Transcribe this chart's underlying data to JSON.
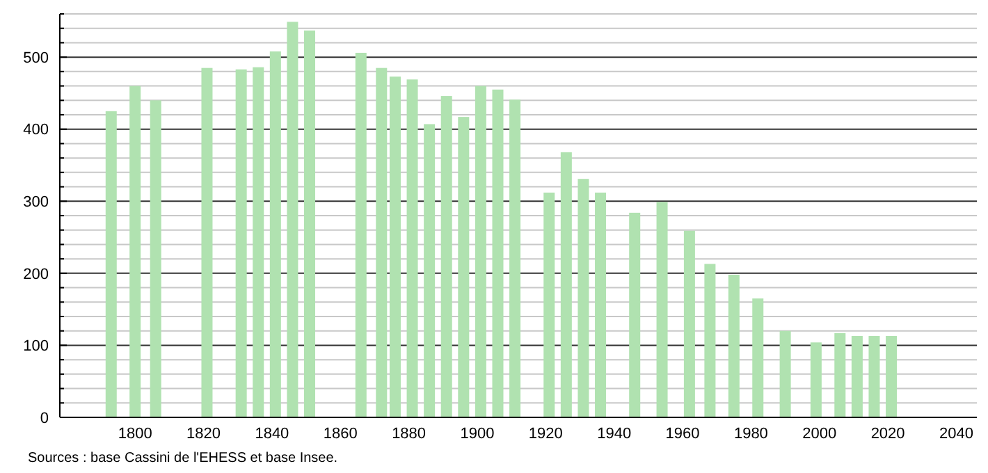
{
  "chart_data": {
    "type": "bar",
    "x": [
      1793,
      1800,
      1806,
      1821,
      1831,
      1836,
      1841,
      1846,
      1851,
      1866,
      1872,
      1876,
      1881,
      1886,
      1891,
      1896,
      1901,
      1906,
      1911,
      1921,
      1926,
      1931,
      1936,
      1946,
      1954,
      1962,
      1968,
      1975,
      1982,
      1990,
      1999,
      2006,
      2011,
      2016,
      2021
    ],
    "values": [
      425,
      460,
      440,
      485,
      483,
      486,
      508,
      549,
      537,
      506,
      485,
      473,
      469,
      407,
      446,
      417,
      460,
      455,
      441,
      312,
      368,
      331,
      312,
      284,
      299,
      259,
      213,
      198,
      165,
      120,
      104,
      117,
      113,
      113,
      113
    ],
    "color": "#b0e2b0",
    "xlim": [
      1778,
      2046
    ],
    "xticks": [
      1800,
      1820,
      1840,
      1860,
      1880,
      1900,
      1920,
      1940,
      1960,
      1980,
      2000,
      2020,
      2040
    ],
    "ylim": [
      0,
      560
    ],
    "yticks": [
      0,
      {
        "value": 20,
        "label": null
      },
      {
        "value": 40,
        "label": null
      },
      {
        "value": 60,
        "label": null
      },
      {
        "value": 80,
        "label": null
      },
      100,
      {
        "value": 120,
        "label": null
      },
      {
        "value": 140,
        "label": null
      },
      {
        "value": 160,
        "label": null
      },
      {
        "value": 180,
        "label": null
      },
      200,
      {
        "value": 220,
        "label": null
      },
      {
        "value": 240,
        "label": null
      },
      {
        "value": 260,
        "label": null
      },
      {
        "value": 280,
        "label": null
      },
      300,
      {
        "value": 320,
        "label": null
      },
      {
        "value": 340,
        "label": null
      },
      {
        "value": 360,
        "label": null
      },
      {
        "value": 380,
        "label": null
      },
      400,
      {
        "value": 420,
        "label": null
      },
      {
        "value": 440,
        "label": null
      },
      {
        "value": 460,
        "label": null
      },
      {
        "value": 480,
        "label": null
      },
      500,
      {
        "value": 520,
        "label": null
      },
      {
        "value": 540,
        "label": null
      },
      {
        "value": 560,
        "label": null
      }
    ],
    "grid": "y",
    "annotations": [
      "Sources : base Cassini de l'EHESS et base Insee."
    ]
  }
}
